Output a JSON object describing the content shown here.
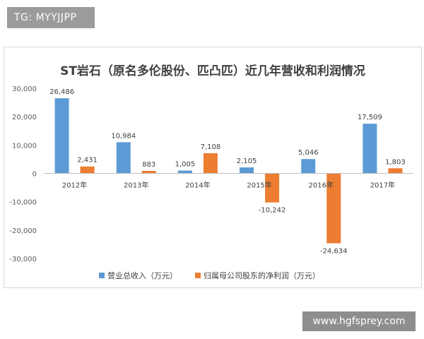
{
  "tag_badge": "TG: MYYJJPP",
  "watermark": "www.hgfsprey.com",
  "chart_data": {
    "type": "bar",
    "title": "ST岩石（原名多伦股份、匹凸匹）近几年营收和利润情况",
    "categories": [
      "2012年",
      "2013年",
      "2014年",
      "2015年",
      "2016年",
      "2017年"
    ],
    "series": [
      {
        "name": "营业总收入（万元）",
        "color": "#5b9bd5",
        "values": [
          26486,
          10984,
          1005,
          2105,
          5046,
          17509
        ]
      },
      {
        "name": "归属母公司股东的净利润（万元）",
        "color": "#ed7d31",
        "values": [
          2431,
          883,
          7108,
          -10242,
          -24634,
          1803
        ]
      }
    ],
    "value_labels": [
      [
        "26,486",
        "10,984",
        "1,005",
        "2,105",
        "5,046",
        "17,509"
      ],
      [
        "2,431",
        "883",
        "7,108",
        "-10,242",
        "-24,634",
        "1,803"
      ]
    ],
    "yticks": [
      30000,
      20000,
      10000,
      0,
      -10000,
      -20000,
      -30000
    ],
    "ytick_labels": [
      "30,000",
      "20,000",
      "10,000",
      "0",
      "-10,000",
      "-20,000",
      "-30,000"
    ],
    "ylim": [
      -30000,
      30000
    ],
    "xlabel": "",
    "ylabel": "",
    "grid": false,
    "legend_position": "bottom"
  }
}
